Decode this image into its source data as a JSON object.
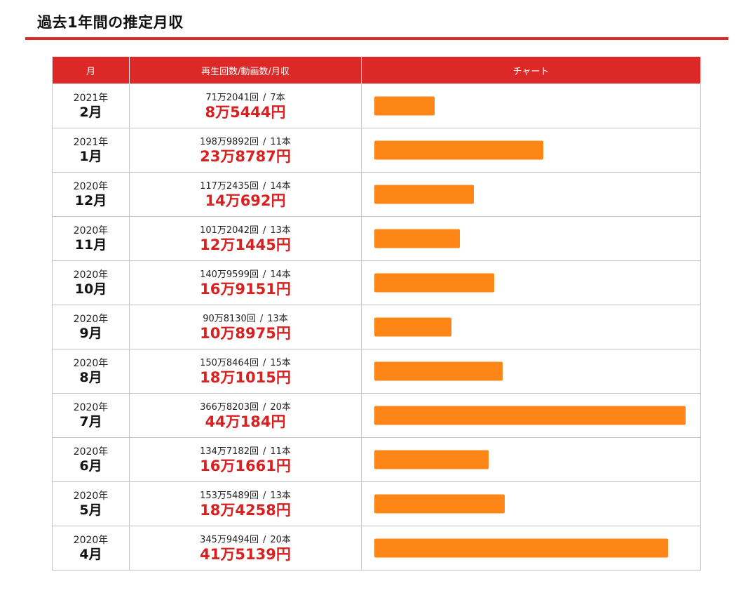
{
  "page": {
    "title": "過去1年間の推定月収"
  },
  "table": {
    "headers": {
      "month": "月",
      "stats": "再生回数/動画数/月収",
      "chart": "チャート"
    },
    "rows": [
      {
        "year": "2021年",
        "month": "2月",
        "views": "71万2041回",
        "videos": "7本",
        "income": "8万5444円",
        "income_value": 85444
      },
      {
        "year": "2021年",
        "month": "1月",
        "views": "198万9892回",
        "videos": "11本",
        "income": "23万8787円",
        "income_value": 238787
      },
      {
        "year": "2020年",
        "month": "12月",
        "views": "117万2435回",
        "videos": "14本",
        "income": "14万692円",
        "income_value": 140692
      },
      {
        "year": "2020年",
        "month": "11月",
        "views": "101万2042回",
        "videos": "13本",
        "income": "12万1445円",
        "income_value": 121445
      },
      {
        "year": "2020年",
        "month": "10月",
        "views": "140万9599回",
        "videos": "14本",
        "income": "16万9151円",
        "income_value": 169151
      },
      {
        "year": "2020年",
        "month": "9月",
        "views": "90万8130回",
        "videos": "13本",
        "income": "10万8975円",
        "income_value": 108975
      },
      {
        "year": "2020年",
        "month": "8月",
        "views": "150万8464回",
        "videos": "15本",
        "income": "18万1015円",
        "income_value": 181015
      },
      {
        "year": "2020年",
        "month": "7月",
        "views": "366万8203回",
        "videos": "20本",
        "income": "44万184円",
        "income_value": 440184
      },
      {
        "year": "2020年",
        "month": "6月",
        "views": "134万7182回",
        "videos": "11本",
        "income": "16万1661円",
        "income_value": 161661
      },
      {
        "year": "2020年",
        "month": "5月",
        "views": "153万5489回",
        "videos": "13本",
        "income": "18万4258円",
        "income_value": 184258
      },
      {
        "year": "2020年",
        "month": "4月",
        "views": "345万9494回",
        "videos": "20本",
        "income": "41万5139円",
        "income_value": 415139
      }
    ],
    "separator": "/"
  },
  "colors": {
    "header_bg": "#dd2828",
    "accent_red": "#d92020",
    "bar": "#fd8617"
  }
}
